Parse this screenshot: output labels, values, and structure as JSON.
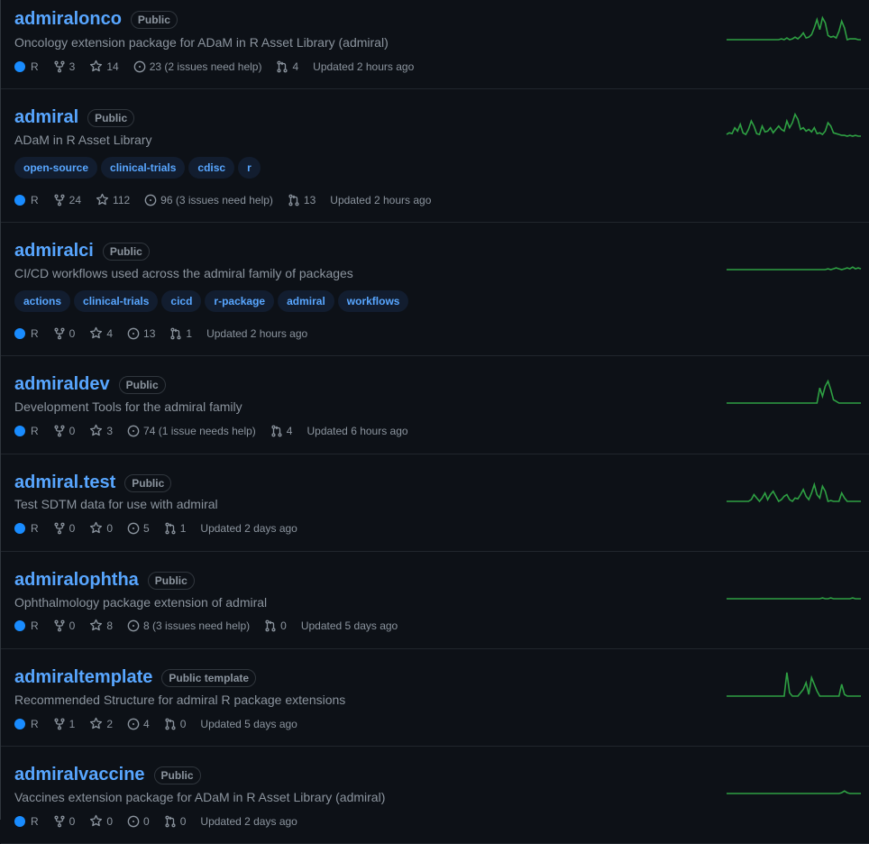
{
  "colors": {
    "accent": "#58a6ff",
    "lang_r": "#198cff",
    "spark": "#2ea043",
    "spark_base": "#1a7f37"
  },
  "icons": [
    "fork-icon",
    "star-icon",
    "issue-icon",
    "pull-request-icon"
  ],
  "repos": [
    {
      "name": "admiralonco",
      "visibility": "Public",
      "description": "Oncology extension package for ADaM in R Asset Library (admiral)",
      "topics": [],
      "language": "R",
      "forks": "3",
      "stars": "14",
      "issues": "23 (2 issues need help)",
      "prs": "4",
      "updated": "Updated 2 hours ago",
      "spark": [
        0,
        0,
        0,
        0,
        0,
        0,
        0,
        0,
        0,
        0,
        0,
        0,
        0,
        0,
        0,
        0,
        0,
        0,
        0,
        0,
        1,
        0,
        2,
        0,
        1,
        3,
        1,
        4,
        8,
        2,
        3,
        6,
        14,
        24,
        12,
        26,
        20,
        5,
        3,
        4,
        2,
        10,
        22,
        14,
        0,
        1,
        1,
        1,
        0,
        0
      ]
    },
    {
      "name": "admiral",
      "visibility": "Public",
      "description": "ADaM in R Asset Library",
      "topics": [
        "open-source",
        "clinical-trials",
        "cdisc",
        "r"
      ],
      "language": "R",
      "forks": "24",
      "stars": "112",
      "issues": "96 (3 issues need help)",
      "prs": "13",
      "updated": "Updated 2 hours ago",
      "spark": [
        2,
        4,
        3,
        10,
        6,
        14,
        4,
        2,
        8,
        18,
        12,
        3,
        2,
        12,
        5,
        6,
        10,
        4,
        8,
        12,
        8,
        6,
        18,
        10,
        16,
        26,
        20,
        8,
        10,
        6,
        8,
        5,
        10,
        3,
        4,
        2,
        6,
        16,
        12,
        4,
        3,
        2,
        1,
        1,
        0,
        1,
        0,
        1,
        0,
        0
      ]
    },
    {
      "name": "admiralci",
      "visibility": "Public",
      "description": "CI/CD workflows used across the admiral family of packages",
      "topics": [
        "actions",
        "clinical-trials",
        "cicd",
        "r-package",
        "admiral",
        "workflows"
      ],
      "language": "R",
      "forks": "0",
      "stars": "4",
      "issues": "13",
      "prs": "1",
      "updated": "Updated 2 hours ago",
      "spark": [
        0,
        0,
        0,
        0,
        0,
        0,
        0,
        0,
        0,
        0,
        0,
        0,
        0,
        0,
        0,
        0,
        0,
        0,
        0,
        0,
        0,
        0,
        0,
        0,
        0,
        0,
        0,
        0,
        0,
        0,
        0,
        0,
        0,
        0,
        0,
        0,
        0,
        1,
        0,
        1,
        2,
        1,
        0,
        1,
        2,
        1,
        3,
        1,
        2,
        1
      ]
    },
    {
      "name": "admiraldev",
      "visibility": "Public",
      "description": "Development Tools for the admiral family",
      "topics": [],
      "language": "R",
      "forks": "0",
      "stars": "3",
      "issues": "74 (1 issue needs help)",
      "prs": "4",
      "updated": "Updated 6 hours ago",
      "spark": [
        0,
        0,
        0,
        0,
        0,
        0,
        0,
        0,
        0,
        0,
        0,
        0,
        0,
        0,
        0,
        0,
        0,
        0,
        0,
        0,
        0,
        0,
        0,
        0,
        0,
        0,
        0,
        0,
        0,
        0,
        0,
        0,
        0,
        0,
        18,
        8,
        20,
        26,
        16,
        4,
        2,
        0,
        0,
        0,
        0,
        0,
        0,
        0,
        0,
        0
      ]
    },
    {
      "name": "admiral.test",
      "visibility": "Public",
      "description": "Test SDTM data for use with admiral",
      "topics": [],
      "language": "R",
      "forks": "0",
      "stars": "0",
      "issues": "5",
      "prs": "1",
      "updated": "Updated 2 days ago",
      "spark": [
        0,
        0,
        0,
        0,
        0,
        0,
        0,
        0,
        0,
        2,
        8,
        4,
        0,
        4,
        10,
        2,
        8,
        12,
        6,
        0,
        2,
        6,
        8,
        2,
        0,
        4,
        3,
        8,
        14,
        6,
        2,
        10,
        20,
        8,
        4,
        18,
        12,
        0,
        1,
        0,
        0,
        0,
        10,
        4,
        0,
        0,
        0,
        0,
        0,
        0
      ]
    },
    {
      "name": "admiralophtha",
      "visibility": "Public",
      "description": "Ophthalmology package extension of admiral",
      "topics": [],
      "language": "R",
      "forks": "0",
      "stars": "8",
      "issues": "8 (3 issues need help)",
      "prs": "0",
      "updated": "Updated 5 days ago",
      "spark": [
        0,
        0,
        0,
        0,
        0,
        0,
        0,
        0,
        0,
        0,
        0,
        0,
        0,
        0,
        0,
        0,
        0,
        0,
        0,
        0,
        0,
        0,
        0,
        0,
        0,
        0,
        0,
        0,
        0,
        0,
        0,
        0,
        0,
        0,
        0,
        1,
        0,
        0,
        1,
        0,
        0,
        0,
        0,
        0,
        0,
        0,
        1,
        0,
        0,
        0
      ]
    },
    {
      "name": "admiraltemplate",
      "visibility": "Public template",
      "description": "Recommended Structure for admiral R package extensions",
      "topics": [],
      "language": "R",
      "forks": "1",
      "stars": "2",
      "issues": "4",
      "prs": "0",
      "updated": "Updated 5 days ago",
      "spark": [
        0,
        0,
        0,
        0,
        0,
        0,
        0,
        0,
        0,
        0,
        0,
        0,
        0,
        0,
        0,
        0,
        0,
        0,
        0,
        0,
        0,
        0,
        28,
        4,
        0,
        0,
        0,
        4,
        8,
        16,
        2,
        22,
        14,
        6,
        0,
        0,
        0,
        0,
        0,
        0,
        0,
        0,
        14,
        2,
        0,
        0,
        0,
        0,
        0,
        0
      ]
    },
    {
      "name": "admiralvaccine",
      "visibility": "Public",
      "description": "Vaccines extension package for ADaM in R Asset Library (admiral)",
      "topics": [],
      "language": "R",
      "forks": "0",
      "stars": "0",
      "issues": "0",
      "prs": "0",
      "updated": "Updated 2 days ago",
      "spark": [
        0,
        0,
        0,
        0,
        0,
        0,
        0,
        0,
        0,
        0,
        0,
        0,
        0,
        0,
        0,
        0,
        0,
        0,
        0,
        0,
        0,
        0,
        0,
        0,
        0,
        0,
        0,
        0,
        0,
        0,
        0,
        0,
        0,
        0,
        0,
        0,
        0,
        0,
        0,
        0,
        0,
        0,
        1,
        3,
        1,
        0,
        0,
        0,
        0,
        0
      ]
    }
  ]
}
